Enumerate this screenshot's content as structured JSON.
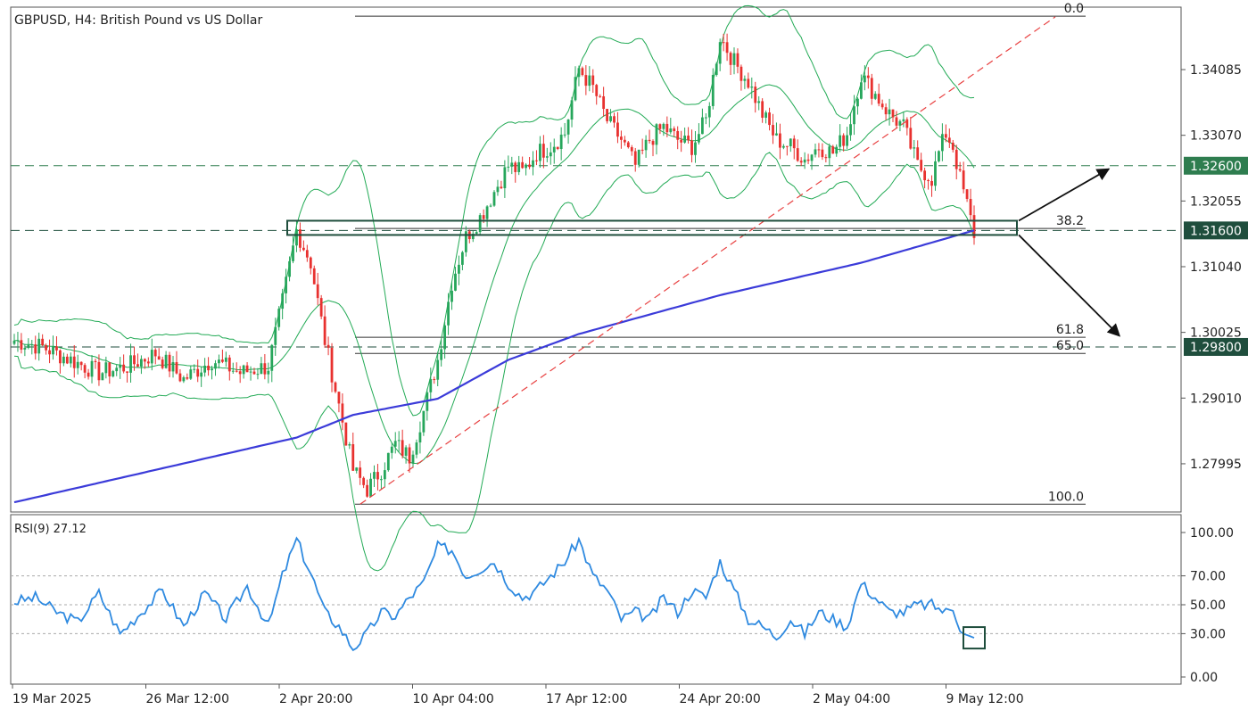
{
  "chart_data": {
    "type": "candlestick",
    "title": "GBPUSD, H4:  British Pound vs US Dollar",
    "instrument": "GBPUSD",
    "timeframe": "H4",
    "description": "British Pound vs US Dollar",
    "x_tick_labels": [
      "19 Mar 2025",
      "26 Mar 12:00",
      "2 Apr 20:00",
      "10 Apr 04:00",
      "17 Apr 12:00",
      "24 Apr 20:00",
      "2 May 04:00",
      "9 May 12:00"
    ],
    "y_tick_labels": [
      "1.34085",
      "1.33070",
      "1.32055",
      "1.31040",
      "1.30025",
      "1.29010",
      "1.27995"
    ],
    "y_ticks": [
      1.34085,
      1.3307,
      1.32055,
      1.3104,
      1.30025,
      1.2901,
      1.27995
    ],
    "ylim": [
      1.2725,
      1.3505
    ],
    "price_levels": [
      {
        "value": 1.326,
        "label": "1.32600",
        "color": "#2e7d4f",
        "style": "dashed"
      },
      {
        "value": 1.316,
        "label": "1.31600",
        "color": "#1f4e3d",
        "style": "dashed"
      },
      {
        "value": 1.298,
        "label": "1.29800",
        "color": "#1f4e3d",
        "style": "dashed"
      }
    ],
    "fibonacci": {
      "levels": [
        {
          "label": "0.0",
          "value": 1.3491
        },
        {
          "label": "38.2",
          "value": 1.3163
        },
        {
          "label": "61.8",
          "value": 1.2995
        },
        {
          "label": "65.0",
          "value": 1.297
        },
        {
          "label": "100.0",
          "value": 1.2737
        }
      ]
    },
    "key_path": [
      [
        0,
        1.299
      ],
      [
        8,
        1.298
      ],
      [
        16,
        1.296
      ],
      [
        24,
        1.294
      ],
      [
        32,
        1.295
      ],
      [
        40,
        1.297
      ],
      [
        48,
        1.293
      ],
      [
        56,
        1.296
      ],
      [
        64,
        1.294
      ],
      [
        72,
        1.295
      ],
      [
        76,
        1.305
      ],
      [
        80,
        1.316
      ],
      [
        84,
        1.311
      ],
      [
        88,
        1.299
      ],
      [
        92,
        1.289
      ],
      [
        96,
        1.279
      ],
      [
        100,
        1.276
      ],
      [
        104,
        1.279
      ],
      [
        108,
        1.283
      ],
      [
        112,
        1.281
      ],
      [
        116,
        1.288
      ],
      [
        120,
        1.296
      ],
      [
        124,
        1.308
      ],
      [
        128,
        1.315
      ],
      [
        132,
        1.318
      ],
      [
        136,
        1.322
      ],
      [
        140,
        1.326
      ],
      [
        144,
        1.325
      ],
      [
        148,
        1.328
      ],
      [
        152,
        1.329
      ],
      [
        156,
        1.331
      ],
      [
        160,
        1.341
      ],
      [
        164,
        1.338
      ],
      [
        168,
        1.333
      ],
      [
        172,
        1.33
      ],
      [
        176,
        1.326
      ],
      [
        180,
        1.33
      ],
      [
        184,
        1.332
      ],
      [
        188,
        1.33
      ],
      [
        192,
        1.329
      ],
      [
        196,
        1.333
      ],
      [
        200,
        1.346
      ],
      [
        204,
        1.342
      ],
      [
        208,
        1.339
      ],
      [
        212,
        1.334
      ],
      [
        216,
        1.33
      ],
      [
        220,
        1.329
      ],
      [
        224,
        1.327
      ],
      [
        228,
        1.329
      ],
      [
        232,
        1.328
      ],
      [
        236,
        1.331
      ],
      [
        240,
        1.34
      ],
      [
        244,
        1.337
      ],
      [
        248,
        1.334
      ],
      [
        252,
        1.332
      ],
      [
        256,
        1.326
      ],
      [
        260,
        1.324
      ],
      [
        262,
        1.328
      ],
      [
        264,
        1.331
      ],
      [
        266,
        1.329
      ],
      [
        268,
        1.324
      ],
      [
        270,
        1.32
      ],
      [
        272,
        1.3155
      ]
    ],
    "ema": [
      [
        0,
        1.274
      ],
      [
        40,
        1.279
      ],
      [
        80,
        1.284
      ],
      [
        96,
        1.2875
      ],
      [
        120,
        1.29
      ],
      [
        140,
        1.296
      ],
      [
        160,
        1.3
      ],
      [
        200,
        1.306
      ],
      [
        240,
        1.311
      ],
      [
        272,
        1.316
      ]
    ],
    "trendline": {
      "start": [
        98,
        1.2737
      ],
      "end": [
        295,
        1.349
      ]
    },
    "support_box": {
      "top": 1.3175,
      "bottom": 1.3153
    },
    "arrows": [
      "up",
      "down"
    ],
    "indicator": {
      "name": "RSI(9)",
      "label": "RSI(9) 27.12",
      "last_value": 27.12,
      "y_tick_labels": [
        "100.00",
        "70.00",
        "50.00",
        "30.00",
        "0.00"
      ],
      "levels": [
        70,
        50,
        30
      ],
      "key_path": [
        [
          0,
          52
        ],
        [
          6,
          55
        ],
        [
          12,
          45
        ],
        [
          18,
          38
        ],
        [
          24,
          58
        ],
        [
          30,
          30
        ],
        [
          36,
          45
        ],
        [
          42,
          60
        ],
        [
          48,
          35
        ],
        [
          54,
          58
        ],
        [
          60,
          40
        ],
        [
          66,
          63
        ],
        [
          72,
          35
        ],
        [
          76,
          70
        ],
        [
          80,
          95
        ],
        [
          84,
          72
        ],
        [
          88,
          45
        ],
        [
          92,
          35
        ],
        [
          96,
          20
        ],
        [
          100,
          30
        ],
        [
          104,
          45
        ],
        [
          108,
          42
        ],
        [
          112,
          55
        ],
        [
          116,
          65
        ],
        [
          120,
          90
        ],
        [
          124,
          88
        ],
        [
          128,
          70
        ],
        [
          132,
          75
        ],
        [
          136,
          80
        ],
        [
          140,
          65
        ],
        [
          144,
          55
        ],
        [
          148,
          60
        ],
        [
          152,
          70
        ],
        [
          156,
          80
        ],
        [
          160,
          95
        ],
        [
          164,
          70
        ],
        [
          168,
          60
        ],
        [
          172,
          40
        ],
        [
          176,
          45
        ],
        [
          180,
          40
        ],
        [
          184,
          55
        ],
        [
          188,
          45
        ],
        [
          192,
          60
        ],
        [
          196,
          55
        ],
        [
          200,
          80
        ],
        [
          204,
          60
        ],
        [
          208,
          40
        ],
        [
          212,
          35
        ],
        [
          216,
          28
        ],
        [
          220,
          40
        ],
        [
          224,
          30
        ],
        [
          228,
          45
        ],
        [
          232,
          40
        ],
        [
          236,
          35
        ],
        [
          240,
          65
        ],
        [
          244,
          55
        ],
        [
          248,
          45
        ],
        [
          252,
          45
        ],
        [
          256,
          50
        ],
        [
          260,
          50
        ],
        [
          264,
          45
        ],
        [
          266,
          48
        ],
        [
          268,
          35
        ],
        [
          270,
          29
        ],
        [
          272,
          27.12
        ]
      ]
    },
    "colors": {
      "bull": "#26a65b",
      "bear": "#e8312f",
      "ema": "#3b3bd9",
      "bollinger": "#22aa55",
      "trendline": "#e84040",
      "rsi": "#2f8ae0",
      "box": "#1f4e3d"
    }
  }
}
